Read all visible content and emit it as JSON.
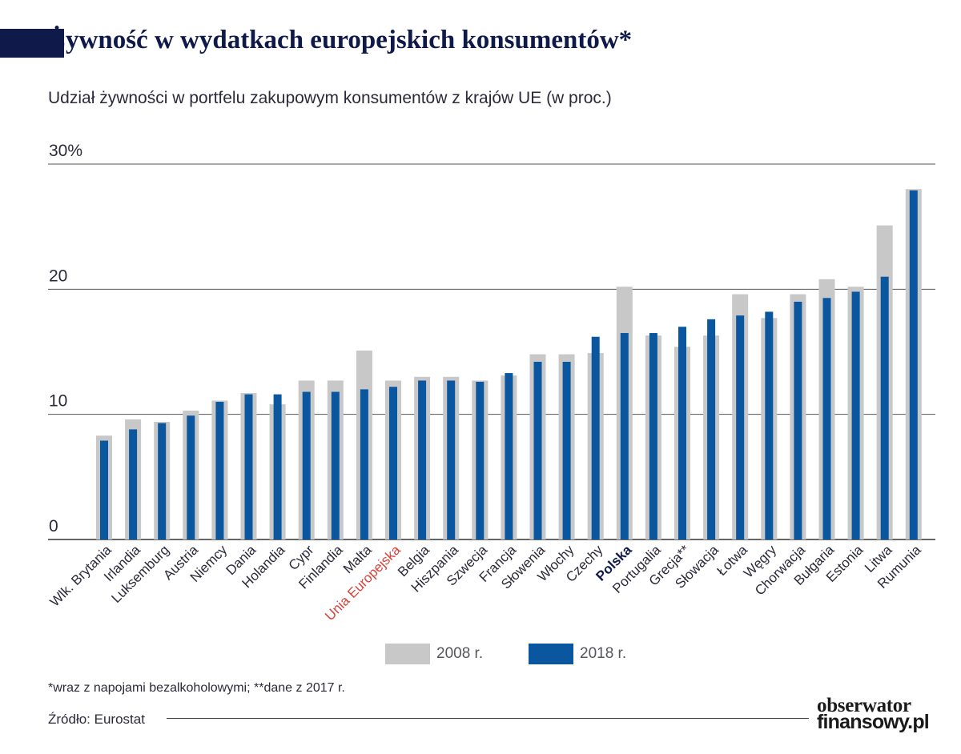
{
  "header": {
    "title_first_letter": "Ż",
    "title_rest": "ywność w wydatkach europejskich konsumentów*",
    "subtitle": "Udział żywności w portfelu zakupowym konsumentów z krajów UE (w proc.)"
  },
  "colors": {
    "series_2008": "#c8c8c8",
    "series_2018": "#0a57a0",
    "eu_label": "#d9413a",
    "poland_label": "#0f1a4a",
    "title": "#0f1a4a",
    "gridline": "#555555"
  },
  "chart_data": {
    "type": "bar",
    "ylim": [
      0,
      30
    ],
    "yticks": [
      {
        "value": 30,
        "label": "30%"
      },
      {
        "value": 20,
        "label": "20"
      },
      {
        "value": 10,
        "label": "10"
      },
      {
        "value": 0,
        "label": "0"
      }
    ],
    "grid": true,
    "legend_placement": "bottom",
    "categories": [
      "Wlk. Brytania",
      "Irlandia",
      "Luksemburg",
      "Austria",
      "Niemcy",
      "Dania",
      "Holandia",
      "Cypr",
      "Finlandia",
      "Malta",
      "Unia Europejska",
      "Belgia",
      "Hiszpania",
      "Szwecja",
      "Francja",
      "Słowenia",
      "Włochy",
      "Czechy",
      "Polska",
      "Portugalia",
      "Grecja**",
      "Słowacja",
      "Łotwa",
      "Węgry",
      "Chorwacja",
      "Bułgaria",
      "Estonia",
      "Litwa",
      "Rumunia"
    ],
    "highlight": {
      "Unia Europejska": "eu",
      "Polska": "poland"
    },
    "series": [
      {
        "name": "2008 r.",
        "values": [
          8.3,
          9.6,
          9.4,
          10.3,
          11.1,
          11.7,
          10.8,
          12.7,
          12.7,
          15.1,
          12.7,
          13.0,
          13.0,
          12.7,
          13.1,
          14.8,
          14.8,
          14.9,
          20.2,
          16.3,
          15.4,
          16.3,
          19.6,
          17.7,
          19.6,
          20.8,
          20.2,
          25.1,
          28.0
        ]
      },
      {
        "name": "2018 r.",
        "values": [
          7.9,
          8.8,
          9.3,
          9.9,
          11.0,
          11.6,
          11.6,
          11.8,
          11.8,
          12.0,
          12.2,
          12.7,
          12.7,
          12.6,
          13.3,
          14.2,
          14.2,
          16.2,
          16.5,
          16.5,
          17.0,
          17.6,
          17.9,
          18.2,
          19.0,
          19.3,
          19.8,
          21.0,
          27.9
        ]
      }
    ]
  },
  "footer": {
    "footnote": "*wraz z napojami bezalkoholowymi;  **dane z 2017 r.",
    "source": "Źródło: Eurostat",
    "logo_line1": "obserwator",
    "logo_line2": "finansowy.pl"
  }
}
